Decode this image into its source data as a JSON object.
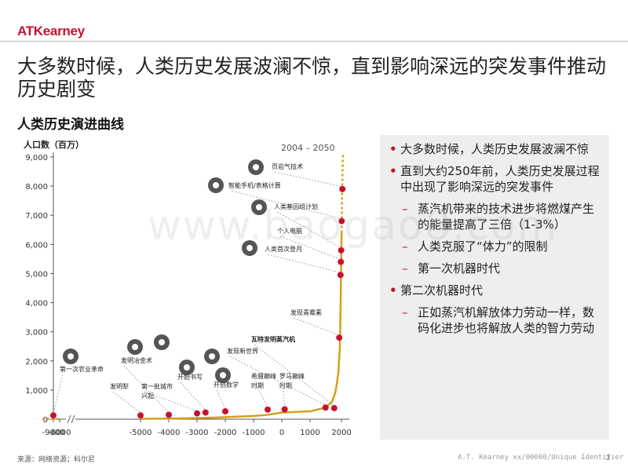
{
  "header": {
    "logo": "ATKearney"
  },
  "title": "大多数时候，人类历史发展波澜不惊，直到影响深远的突发事件推动历史剧变",
  "subtitle": "人类历史演进曲线",
  "watermark": "www.baogao8.com",
  "chart_data": {
    "type": "line",
    "ylabel": "人口数（百万）",
    "yticks": [
      "0",
      "1,000",
      "2,000",
      "3,000",
      "4,000",
      "5,000",
      "6,000",
      "7,000",
      "8,000",
      "9,000"
    ],
    "ylim": [
      0,
      9000
    ],
    "xticks": [
      "-9000",
      "-6000",
      "-5000",
      "-4000",
      "-3000",
      "-2000",
      "-1000",
      "0",
      "1000",
      "2000"
    ],
    "forecast_label": "2004 – 2050",
    "colors": {
      "line": "#d4a017",
      "dot": "#c8102e",
      "axis": "#555555"
    },
    "series": [
      {
        "x": [
          -9000,
          -6000,
          -5000,
          -4000,
          -3000,
          -2500,
          -2000,
          -1500,
          -1000,
          -500,
          0,
          500,
          1000,
          1500,
          1700,
          1800,
          1850,
          1900,
          1950,
          1970,
          1990,
          2000,
          2004
        ],
        "values": [
          5,
          10,
          15,
          20,
          40,
          50,
          70,
          90,
          110,
          150,
          230,
          250,
          270,
          400,
          600,
          900,
          1200,
          1600,
          2500,
          3700,
          5300,
          6100,
          6400
        ]
      },
      {
        "x": [
          2004,
          2010,
          2020,
          2030,
          2040,
          2050
        ],
        "values": [
          6400,
          6900,
          7700,
          8300,
          8800,
          9100
        ]
      }
    ],
    "events": [
      {
        "label": "第一次农业革命",
        "x": -9000,
        "y": 130,
        "icon": "farmer-icon"
      },
      {
        "label": "发明犁",
        "x": -5000,
        "y": 130,
        "icon": ""
      },
      {
        "label": "发明冶金术",
        "x": -4000,
        "y": 150,
        "icon": "anvil-icon"
      },
      {
        "label": "第一批城市兴起",
        "x": -3000,
        "y": 200,
        "icon": ""
      },
      {
        "label": "开始书写",
        "x": -2700,
        "y": 230,
        "icon": "writing-icon"
      },
      {
        "label": "开创数学",
        "x": -2000,
        "y": 270,
        "icon": "math-icon"
      },
      {
        "label": "希腊巅峰时期",
        "x": -500,
        "y": 330,
        "icon": ""
      },
      {
        "label": "罗马巅峰时期",
        "x": 100,
        "y": 340,
        "icon": ""
      },
      {
        "label": "发现新世界",
        "x": 1492,
        "y": 400,
        "icon": "globe-icon"
      },
      {
        "label": "瓦特发明蒸汽机",
        "x": 1769,
        "y": 380,
        "icon": "engine-icon"
      },
      {
        "label": "发现青霉素",
        "x": 1928,
        "y": 2800,
        "icon": ""
      },
      {
        "label": "人类首次登月",
        "x": 1969,
        "y": 4950,
        "icon": "astronaut-icon"
      },
      {
        "label": "个人电脑",
        "x": 1980,
        "y": 5400,
        "icon": ""
      },
      {
        "label": "人类基因组计划",
        "x": 1990,
        "y": 5800,
        "icon": "flask-icon"
      },
      {
        "label": "智能手机/表格计算",
        "x": 2007,
        "y": 6800,
        "icon": "phone-icon"
      },
      {
        "label": "页岩气技术",
        "x": 2030,
        "y": 7900,
        "icon": "flame-icon"
      }
    ]
  },
  "bullets": [
    {
      "level": 1,
      "text": "大多数时候，人类历史发展波澜不惊"
    },
    {
      "level": 1,
      "text": "直到大约250年前，人类历史发展过程中出现了影响深远的突发事件"
    },
    {
      "level": 2,
      "text": "蒸汽机带来的技术进步将燃煤产生的能量提高了三倍（1-3%）"
    },
    {
      "level": 2,
      "text": "人类克服了“体力”的限制"
    },
    {
      "level": 2,
      "text": "第一次机器时代"
    },
    {
      "level": 1,
      "text": "第二次机器时代"
    },
    {
      "level": 2,
      "text": "正如蒸汽机解放体力劳动一样，数码化进步也将解放人类的智力劳动"
    }
  ],
  "footer": {
    "source": "来源：网络资源；科尔尼",
    "identifier": "A.T. Kearney xx/00000/Unique Identifier",
    "page": "3"
  }
}
